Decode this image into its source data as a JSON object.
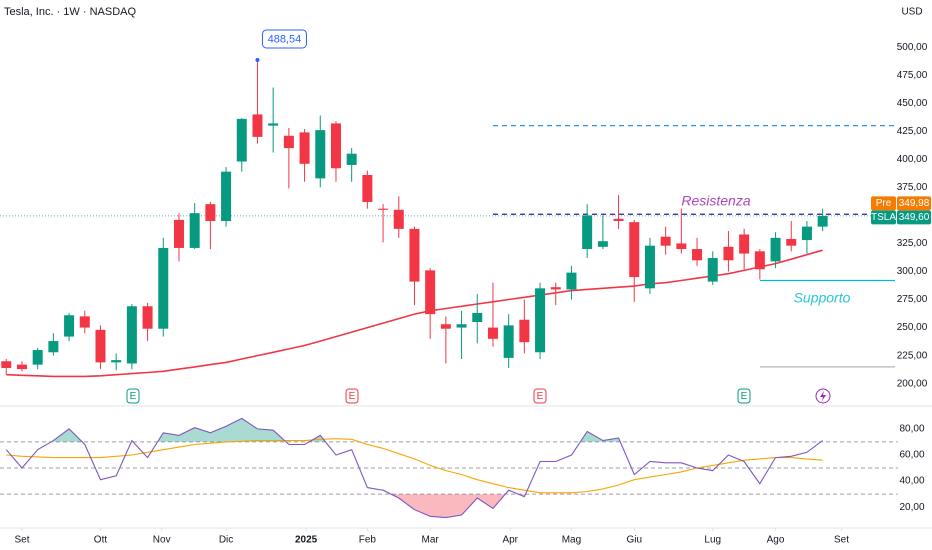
{
  "chart_data": {
    "type": "candlestick",
    "title": "Tesla, Inc. · 1W · NASDAQ",
    "currency": "USD",
    "xlim": [
      -0.4,
      56.8
    ],
    "xticks": [
      {
        "value": 1.0,
        "label": "Set"
      },
      {
        "value": 6.0,
        "label": "Ott"
      },
      {
        "value": 9.9,
        "label": "Nov"
      },
      {
        "value": 14.0,
        "label": "Dic"
      },
      {
        "value": 19.1,
        "label": "2025"
      },
      {
        "value": 23.0,
        "label": "Feb"
      },
      {
        "value": 27.0,
        "label": "Mar"
      },
      {
        "value": 32.1,
        "label": "Apr"
      },
      {
        "value": 36.0,
        "label": "Mag"
      },
      {
        "value": 40.0,
        "label": "Giu"
      },
      {
        "value": 45.0,
        "label": "Lug"
      },
      {
        "value": 49.0,
        "label": "Ago"
      },
      {
        "value": 53.2,
        "label": "Set"
      }
    ],
    "ylim": [
      181,
      542
    ],
    "yticks": [
      {
        "value": 200,
        "label": "200,00"
      },
      {
        "value": 225,
        "label": "225,00"
      },
      {
        "value": 250,
        "label": "250,00"
      },
      {
        "value": 275,
        "label": "275,00"
      },
      {
        "value": 300,
        "label": "300,00"
      },
      {
        "value": 325,
        "label": "325,00"
      },
      {
        "value": 350,
        "label": "350,00"
      },
      {
        "value": 375,
        "label": "375,00"
      },
      {
        "value": 400,
        "label": "400,00"
      },
      {
        "value": 425,
        "label": "425,00"
      },
      {
        "value": 450,
        "label": "450,00"
      },
      {
        "value": 475,
        "label": "475,00"
      },
      {
        "value": 500,
        "label": "500,00"
      }
    ],
    "grid": false,
    "up_color": "#089981",
    "down_color": "#f23645",
    "open": [
      220,
      217,
      217,
      228,
      242,
      260,
      248,
      219,
      218,
      269,
      249,
      346,
      321,
      360,
      345,
      398,
      440,
      430,
      421,
      424,
      383,
      432,
      395,
      386,
      356,
      355,
      338,
      301,
      253,
      250,
      255,
      250,
      223,
      257,
      228,
      286,
      284,
      320,
      322,
      347,
      344,
      285,
      331,
      325,
      320,
      291,
      322,
      333,
      318,
      309,
      329,
      328,
      340
    ],
    "high": [
      222,
      220,
      232,
      245,
      263,
      265,
      252,
      227,
      271,
      272,
      330,
      352,
      361,
      362,
      393,
      437,
      488.54,
      464,
      428,
      427,
      439,
      434,
      410,
      390,
      360,
      367,
      340,
      303,
      260,
      265,
      280,
      290,
      262,
      275,
      290,
      290,
      305,
      360,
      350,
      368,
      346,
      330,
      340,
      356,
      330,
      318,
      336,
      338,
      320,
      335,
      345,
      345,
      356
    ],
    "low": [
      208,
      211,
      213,
      225,
      238,
      245,
      213,
      212,
      213,
      238,
      242,
      309,
      320,
      320,
      340,
      389,
      414,
      406,
      374,
      380,
      375,
      380,
      380,
      356,
      326,
      330,
      270,
      240,
      218,
      222,
      236,
      233,
      214,
      227,
      222,
      270,
      275,
      312,
      320,
      338,
      273,
      280,
      315,
      316,
      305,
      288,
      300,
      302,
      293,
      303,
      318,
      316,
      336
    ],
    "close": [
      214,
      213,
      230,
      238,
      261,
      250,
      219,
      221,
      269,
      249,
      321,
      321,
      352,
      345,
      389,
      436,
      420,
      432,
      410,
      396,
      426,
      392,
      405,
      362,
      355,
      338,
      291,
      262,
      249,
      253,
      263,
      240,
      252,
      237,
      285,
      284,
      299,
      350,
      327,
      345,
      295,
      323,
      323,
      320,
      310,
      312,
      310,
      316,
      302,
      330,
      323,
      340,
      349.6
    ],
    "ma": {
      "color": "#f23645",
      "values": [
        208,
        207.5,
        207,
        206.5,
        206.5,
        206.5,
        207,
        208,
        209,
        210,
        211,
        213,
        215,
        217,
        219,
        222,
        225,
        228,
        231,
        234,
        238,
        242,
        246,
        250,
        254,
        258,
        262,
        265,
        267,
        269,
        271,
        273,
        275,
        277,
        279,
        281,
        283,
        284,
        285,
        286,
        287,
        289,
        290,
        292,
        294,
        296,
        298,
        301,
        304,
        307,
        311,
        315,
        319
      ]
    },
    "levels": [
      {
        "value": 430,
        "color": "#2196f3",
        "style": "dashed"
      },
      {
        "value": 351,
        "color": "#311b92",
        "style": "dashed"
      },
      {
        "value": 292,
        "color": "#00bcd4",
        "style": "solid"
      },
      {
        "value": 215,
        "color": "#b2b5be",
        "style": "solid"
      }
    ],
    "annotations": [
      {
        "value": 488.54,
        "label": "488,54"
      },
      {
        "text": "Resistenza",
        "color": "#ab47bc"
      },
      {
        "text": "Supporto",
        "color": "#26c6da"
      }
    ],
    "pre_price": {
      "tag": "Pre",
      "value": 349.98,
      "label": "349,98",
      "color": "#f57c00"
    },
    "last_price": {
      "tag": "TSLA",
      "value": 349.6,
      "label": "349,60",
      "color": "#089981"
    },
    "events": [
      "E",
      "E",
      "E",
      "E"
    ],
    "rsi": {
      "type": "line",
      "ylim": [
        4,
        96
      ],
      "yticks": [
        {
          "value": 20,
          "label": "20,00"
        },
        {
          "value": 40,
          "label": "40,00"
        },
        {
          "value": 60,
          "label": "60,00"
        },
        {
          "value": 80,
          "label": "80,00"
        }
      ],
      "hlines": [
        70,
        50,
        30
      ],
      "color": "#7e57c2",
      "values": [
        64,
        50,
        64,
        71,
        80,
        68,
        41,
        44,
        71,
        58,
        77,
        75,
        81,
        77,
        82,
        88,
        80,
        79,
        68,
        68,
        75,
        60,
        64,
        35,
        33,
        27,
        18,
        13,
        12,
        14,
        27,
        19,
        33,
        28,
        55,
        55,
        60,
        78,
        71,
        73,
        45,
        55,
        54,
        54,
        50,
        48,
        60,
        55,
        38,
        58,
        59,
        62,
        71
      ],
      "ma": {
        "color": "#f7a600",
        "values": [
          60,
          59,
          58.5,
          58,
          58,
          58,
          58,
          59,
          60,
          62,
          64,
          66,
          68,
          69,
          70,
          70.5,
          71,
          71,
          71,
          71,
          72,
          72.5,
          72,
          68,
          65,
          61,
          57,
          52,
          48,
          45,
          41,
          38,
          35,
          33,
          31,
          31,
          31,
          32,
          34,
          37,
          41,
          43,
          45,
          47,
          50,
          52,
          54,
          56,
          57,
          58,
          58,
          57,
          56
        ]
      }
    }
  }
}
